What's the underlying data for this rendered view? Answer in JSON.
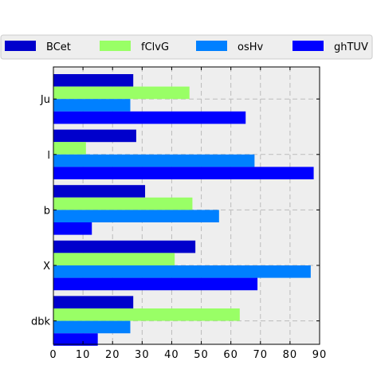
{
  "chart_data": {
    "type": "bar",
    "orientation": "horizontal",
    "categories": [
      "Ju",
      "l",
      "b",
      "X",
      "dbk"
    ],
    "series": [
      {
        "name": "BCet",
        "color": "#0000cc",
        "values": [
          27,
          28,
          31,
          48,
          27
        ]
      },
      {
        "name": "fClvG",
        "color": "#99ff66",
        "values": [
          46,
          11,
          47,
          41,
          63
        ]
      },
      {
        "name": "osHv",
        "color": "#0080ff",
        "values": [
          26,
          68,
          56,
          87,
          26
        ]
      },
      {
        "name": "ghTUV",
        "color": "#0000ff",
        "values": [
          65,
          88,
          13,
          69,
          15
        ]
      }
    ],
    "xlim": [
      0,
      90
    ],
    "xticks": [
      "0",
      "10",
      "20",
      "30",
      "40",
      "50",
      "60",
      "70",
      "80",
      "90"
    ],
    "grid": true,
    "legend": "top",
    "background": "#eeeeee"
  }
}
